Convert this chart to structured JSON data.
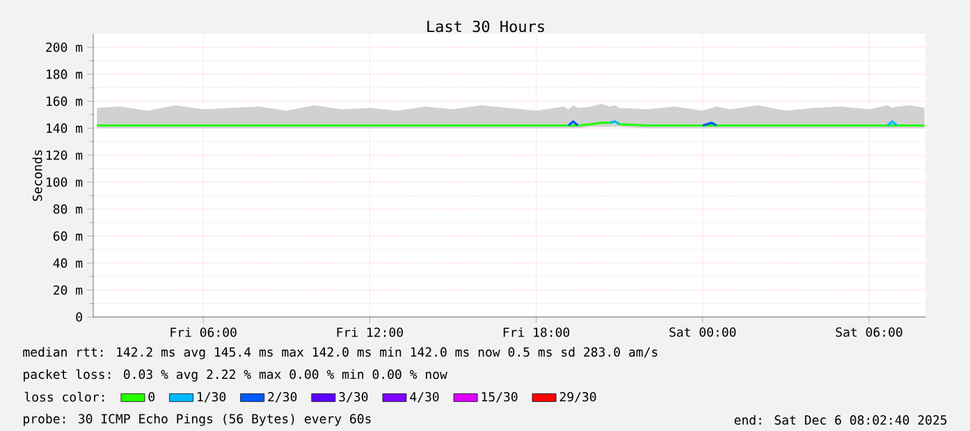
{
  "chart_data": {
    "type": "line",
    "title": "Last 30 Hours",
    "ylabel": "Seconds",
    "legend_title": "loss color:",
    "legend": "bottom",
    "grid": true,
    "x": [
      "2025-12-05T02:10",
      "2025-12-05T03:00",
      "2025-12-05T04:00",
      "2025-12-05T05:00",
      "2025-12-05T06:00",
      "2025-12-05T07:00",
      "2025-12-05T08:00",
      "2025-12-05T09:00",
      "2025-12-05T10:00",
      "2025-12-05T11:00",
      "2025-12-05T12:00",
      "2025-12-05T13:00",
      "2025-12-05T14:00",
      "2025-12-05T15:00",
      "2025-12-05T16:00",
      "2025-12-05T17:00",
      "2025-12-05T18:00",
      "2025-12-05T19:00",
      "2025-12-05T19:10",
      "2025-12-05T19:20",
      "2025-12-05T19:30",
      "2025-12-05T20:00",
      "2025-12-05T20:20",
      "2025-12-05T20:40",
      "2025-12-05T20:50",
      "2025-12-05T21:00",
      "2025-12-05T22:00",
      "2025-12-05T23:00",
      "2025-12-06T00:00",
      "2025-12-06T00:20",
      "2025-12-06T00:30",
      "2025-12-06T01:00",
      "2025-12-06T02:00",
      "2025-12-06T03:00",
      "2025-12-06T04:00",
      "2025-12-06T05:00",
      "2025-12-06T06:00",
      "2025-12-06T06:40",
      "2025-12-06T06:50",
      "2025-12-06T07:00",
      "2025-12-06T07:30",
      "2025-12-06T08:00"
    ],
    "series": [
      {
        "name": "0",
        "color": "#26ff00",
        "values": [
          142,
          142,
          142,
          142,
          142,
          142,
          142,
          142,
          142,
          142,
          142,
          142,
          142,
          142,
          142,
          142,
          142,
          142,
          142,
          142,
          142,
          143,
          144,
          144,
          145,
          143,
          142,
          142,
          142,
          142,
          142,
          142,
          142,
          142,
          142,
          142,
          142,
          142,
          142,
          142,
          142,
          142
        ],
        "lower": [
          140,
          140,
          140,
          140,
          140,
          140,
          140,
          140,
          140,
          140,
          140,
          140,
          140,
          140,
          140,
          140,
          140,
          140,
          140,
          140,
          140,
          141,
          141,
          141,
          141,
          141,
          140,
          140,
          140,
          140,
          140,
          140,
          140,
          140,
          140,
          140,
          140,
          140,
          140,
          140,
          140,
          140
        ],
        "upper": [
          155,
          156,
          153,
          157,
          154,
          155,
          156,
          153,
          157,
          154,
          155,
          153,
          156,
          154,
          157,
          155,
          153,
          156,
          154,
          157,
          155,
          156,
          158,
          156,
          157,
          155,
          154,
          156,
          153,
          155,
          156,
          154,
          157,
          153,
          155,
          156,
          154,
          157,
          155,
          156,
          157,
          155
        ]
      },
      {
        "name": "1/30",
        "color": "#00b8ff",
        "values": [
          null,
          null,
          null,
          null,
          null,
          null,
          null,
          null,
          null,
          null,
          null,
          null,
          null,
          null,
          null,
          null,
          null,
          null,
          null,
          null,
          null,
          null,
          null,
          144,
          145,
          143,
          null,
          null,
          null,
          null,
          null,
          null,
          null,
          null,
          null,
          null,
          null,
          142,
          145,
          142,
          null,
          null
        ]
      },
      {
        "name": "2/30",
        "color": "#0059ff",
        "values": [
          null,
          null,
          null,
          null,
          null,
          null,
          null,
          null,
          null,
          null,
          null,
          null,
          null,
          null,
          null,
          null,
          null,
          null,
          142,
          145,
          142,
          null,
          null,
          null,
          null,
          null,
          null,
          null,
          142,
          144,
          142,
          null,
          null,
          null,
          null,
          null,
          null,
          null,
          null,
          null,
          null,
          null
        ]
      },
      {
        "name": "3/30",
        "color": "#5e00ff",
        "values": [
          null,
          null,
          null,
          null,
          null,
          null,
          null,
          null,
          null,
          null,
          null,
          null,
          null,
          null,
          null,
          null,
          null,
          null,
          null,
          null,
          null,
          null,
          null,
          null,
          null,
          null,
          null,
          null,
          null,
          null,
          null,
          null,
          null,
          null,
          null,
          null,
          null,
          null,
          null,
          null,
          null,
          null
        ]
      },
      {
        "name": "4/30",
        "color": "#7e00ff",
        "values": [
          null,
          null,
          null,
          null,
          null,
          null,
          null,
          null,
          null,
          null,
          null,
          null,
          null,
          null,
          null,
          null,
          null,
          null,
          null,
          null,
          null,
          null,
          null,
          null,
          null,
          null,
          null,
          null,
          null,
          null,
          null,
          null,
          null,
          null,
          null,
          null,
          null,
          null,
          null,
          null,
          null,
          null
        ]
      },
      {
        "name": "15/30",
        "color": "#dd00ff",
        "values": [
          null,
          null,
          null,
          null,
          null,
          null,
          null,
          null,
          null,
          null,
          null,
          null,
          null,
          null,
          null,
          null,
          null,
          null,
          null,
          null,
          null,
          null,
          null,
          null,
          null,
          null,
          null,
          null,
          null,
          null,
          null,
          null,
          null,
          null,
          null,
          null,
          null,
          null,
          null,
          null,
          null,
          null
        ]
      },
      {
        "name": "29/30",
        "color": "#ff0000",
        "values": [
          null,
          null,
          null,
          null,
          null,
          null,
          null,
          null,
          null,
          null,
          null,
          null,
          null,
          null,
          null,
          null,
          null,
          null,
          null,
          null,
          null,
          null,
          null,
          null,
          null,
          null,
          null,
          null,
          null,
          null,
          null,
          null,
          null,
          null,
          null,
          null,
          null,
          null,
          null,
          null,
          null,
          null
        ]
      }
    ],
    "xlim": [
      "2025-12-05T02:02",
      "2025-12-06T08:02"
    ],
    "xticks": [
      {
        "value": "2025-12-05T06:00",
        "label": "Fri 06:00"
      },
      {
        "value": "2025-12-05T12:00",
        "label": "Fri 12:00"
      },
      {
        "value": "2025-12-05T18:00",
        "label": "Fri 18:00"
      },
      {
        "value": "2025-12-06T00:00",
        "label": "Sat 00:00"
      },
      {
        "value": "2025-12-06T06:00",
        "label": "Sat 06:00"
      }
    ],
    "ylim": [
      0,
      210
    ],
    "yticks": [
      0,
      {
        "value": 20,
        "label": "20 m"
      },
      {
        "value": 40,
        "label": "40 m"
      },
      {
        "value": 60,
        "label": "60 m"
      },
      {
        "value": 80,
        "label": "80 m"
      },
      {
        "value": 100,
        "label": "100 m"
      },
      {
        "value": 120,
        "label": "120 m"
      },
      {
        "value": 140,
        "label": "140 m"
      },
      {
        "value": 160,
        "label": "160 m"
      },
      {
        "value": 180,
        "label": "180 m"
      },
      {
        "value": 200,
        "label": "200 m"
      }
    ],
    "annotations": [
      "median rtt: 142.2 ms avg 145.4 ms max 142.0 ms min 142.0 ms now 0.5 ms sd 283.0 am/s",
      "packet loss: 0.03 % avg 2.22 % max 0.00 % min 0.00 % now",
      "probe: 30 ICMP Echo Pings (56 Bytes) every 60s",
      "end: Sat Dec 6 08:02:40 2025"
    ]
  }
}
